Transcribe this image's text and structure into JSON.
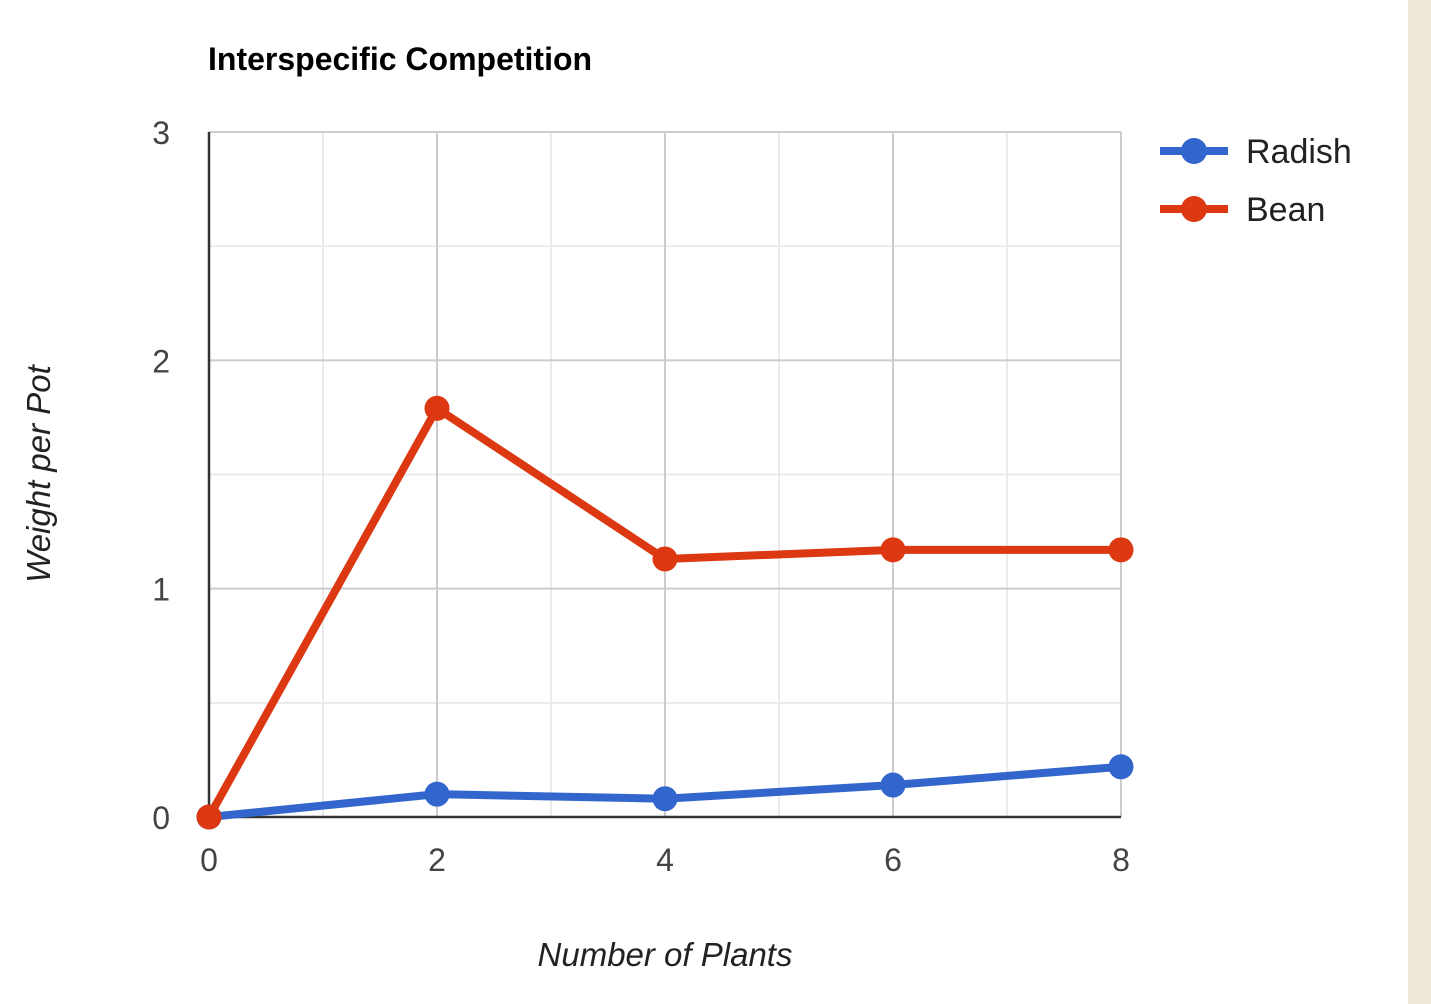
{
  "page": {
    "side_strip_color": "#f0e9d9"
  },
  "chart_data": {
    "type": "line",
    "title": "Interspecific Competition",
    "xlabel": "Number of Plants",
    "ylabel": "Weight per Pot",
    "x": [
      0,
      2,
      4,
      6,
      8
    ],
    "xlim": [
      0,
      8
    ],
    "ylim": [
      0,
      3
    ],
    "x_ticks": [
      0,
      2,
      4,
      6,
      8
    ],
    "y_ticks": [
      0,
      1,
      2,
      3
    ],
    "x_tick_labels": [
      "0",
      "2",
      "4",
      "6",
      "8"
    ],
    "y_tick_labels": [
      "0",
      "1",
      "2",
      "3"
    ],
    "grid": true,
    "minor_gridlines": true,
    "legend_position": "right",
    "series": [
      {
        "name": "Radish",
        "color": "#3366cc",
        "values": [
          0,
          0.1,
          0.08,
          0.14,
          0.22
        ]
      },
      {
        "name": "Bean",
        "color": "#dc3912",
        "values": [
          0,
          1.79,
          1.13,
          1.17,
          1.17
        ]
      }
    ]
  }
}
